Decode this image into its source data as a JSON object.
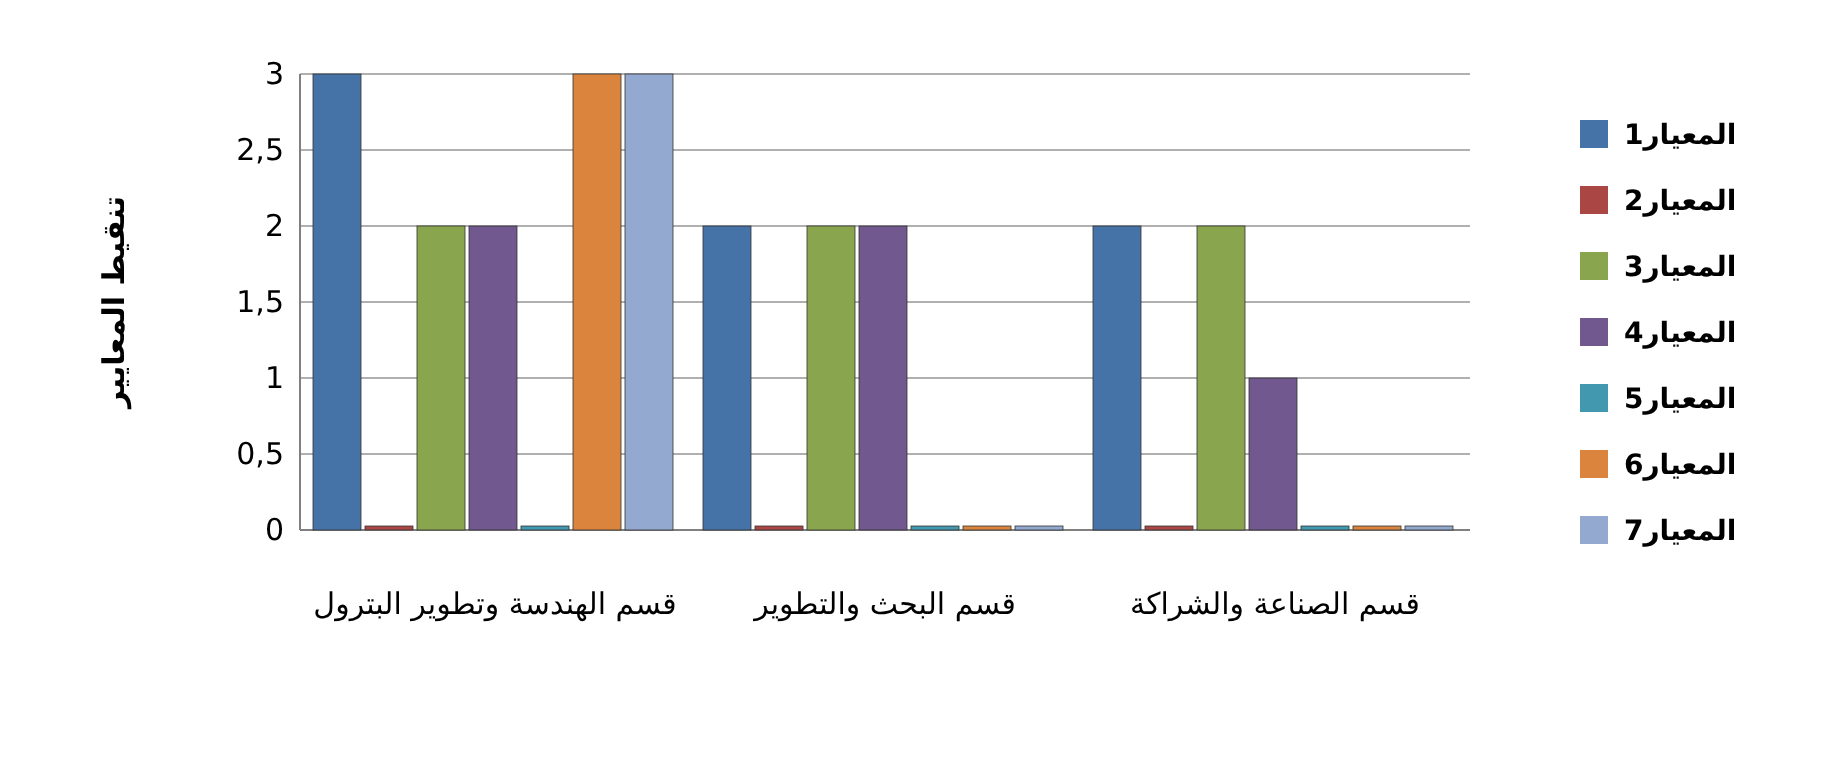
{
  "chart_data": {
    "type": "bar",
    "ylabel": "تنقيط المعايير",
    "categories": [
      "قسم الهندسة وتطوير البترول",
      "قسم البحث والتطوير",
      "قسم الصناعة والشراكة"
    ],
    "series": [
      {
        "name": "المعيار1",
        "color": "#4572a7",
        "values": [
          3,
          2,
          2
        ]
      },
      {
        "name": "المعيار2",
        "color": "#aa4643",
        "values": [
          0,
          0,
          0
        ]
      },
      {
        "name": "المعيار3",
        "color": "#89a54e",
        "values": [
          2,
          2,
          2
        ]
      },
      {
        "name": "المعيار4",
        "color": "#71588f",
        "values": [
          2,
          2,
          1
        ]
      },
      {
        "name": "المعيار5",
        "color": "#4198af",
        "values": [
          0,
          0,
          0
        ]
      },
      {
        "name": "المعيار6",
        "color": "#db843d",
        "values": [
          3,
          0,
          0
        ]
      },
      {
        "name": "المعيار7",
        "color": "#93a9cf",
        "values": [
          3,
          0,
          0
        ]
      }
    ],
    "ylim": [
      0,
      3
    ],
    "yticks": [
      0,
      {
        "value": 0.5,
        "label": "0,5"
      },
      1,
      {
        "value": 1.5,
        "label": "1,5"
      },
      2,
      {
        "value": 2.5,
        "label": "2,5"
      },
      3
    ],
    "grid": "y",
    "legend": "right"
  }
}
